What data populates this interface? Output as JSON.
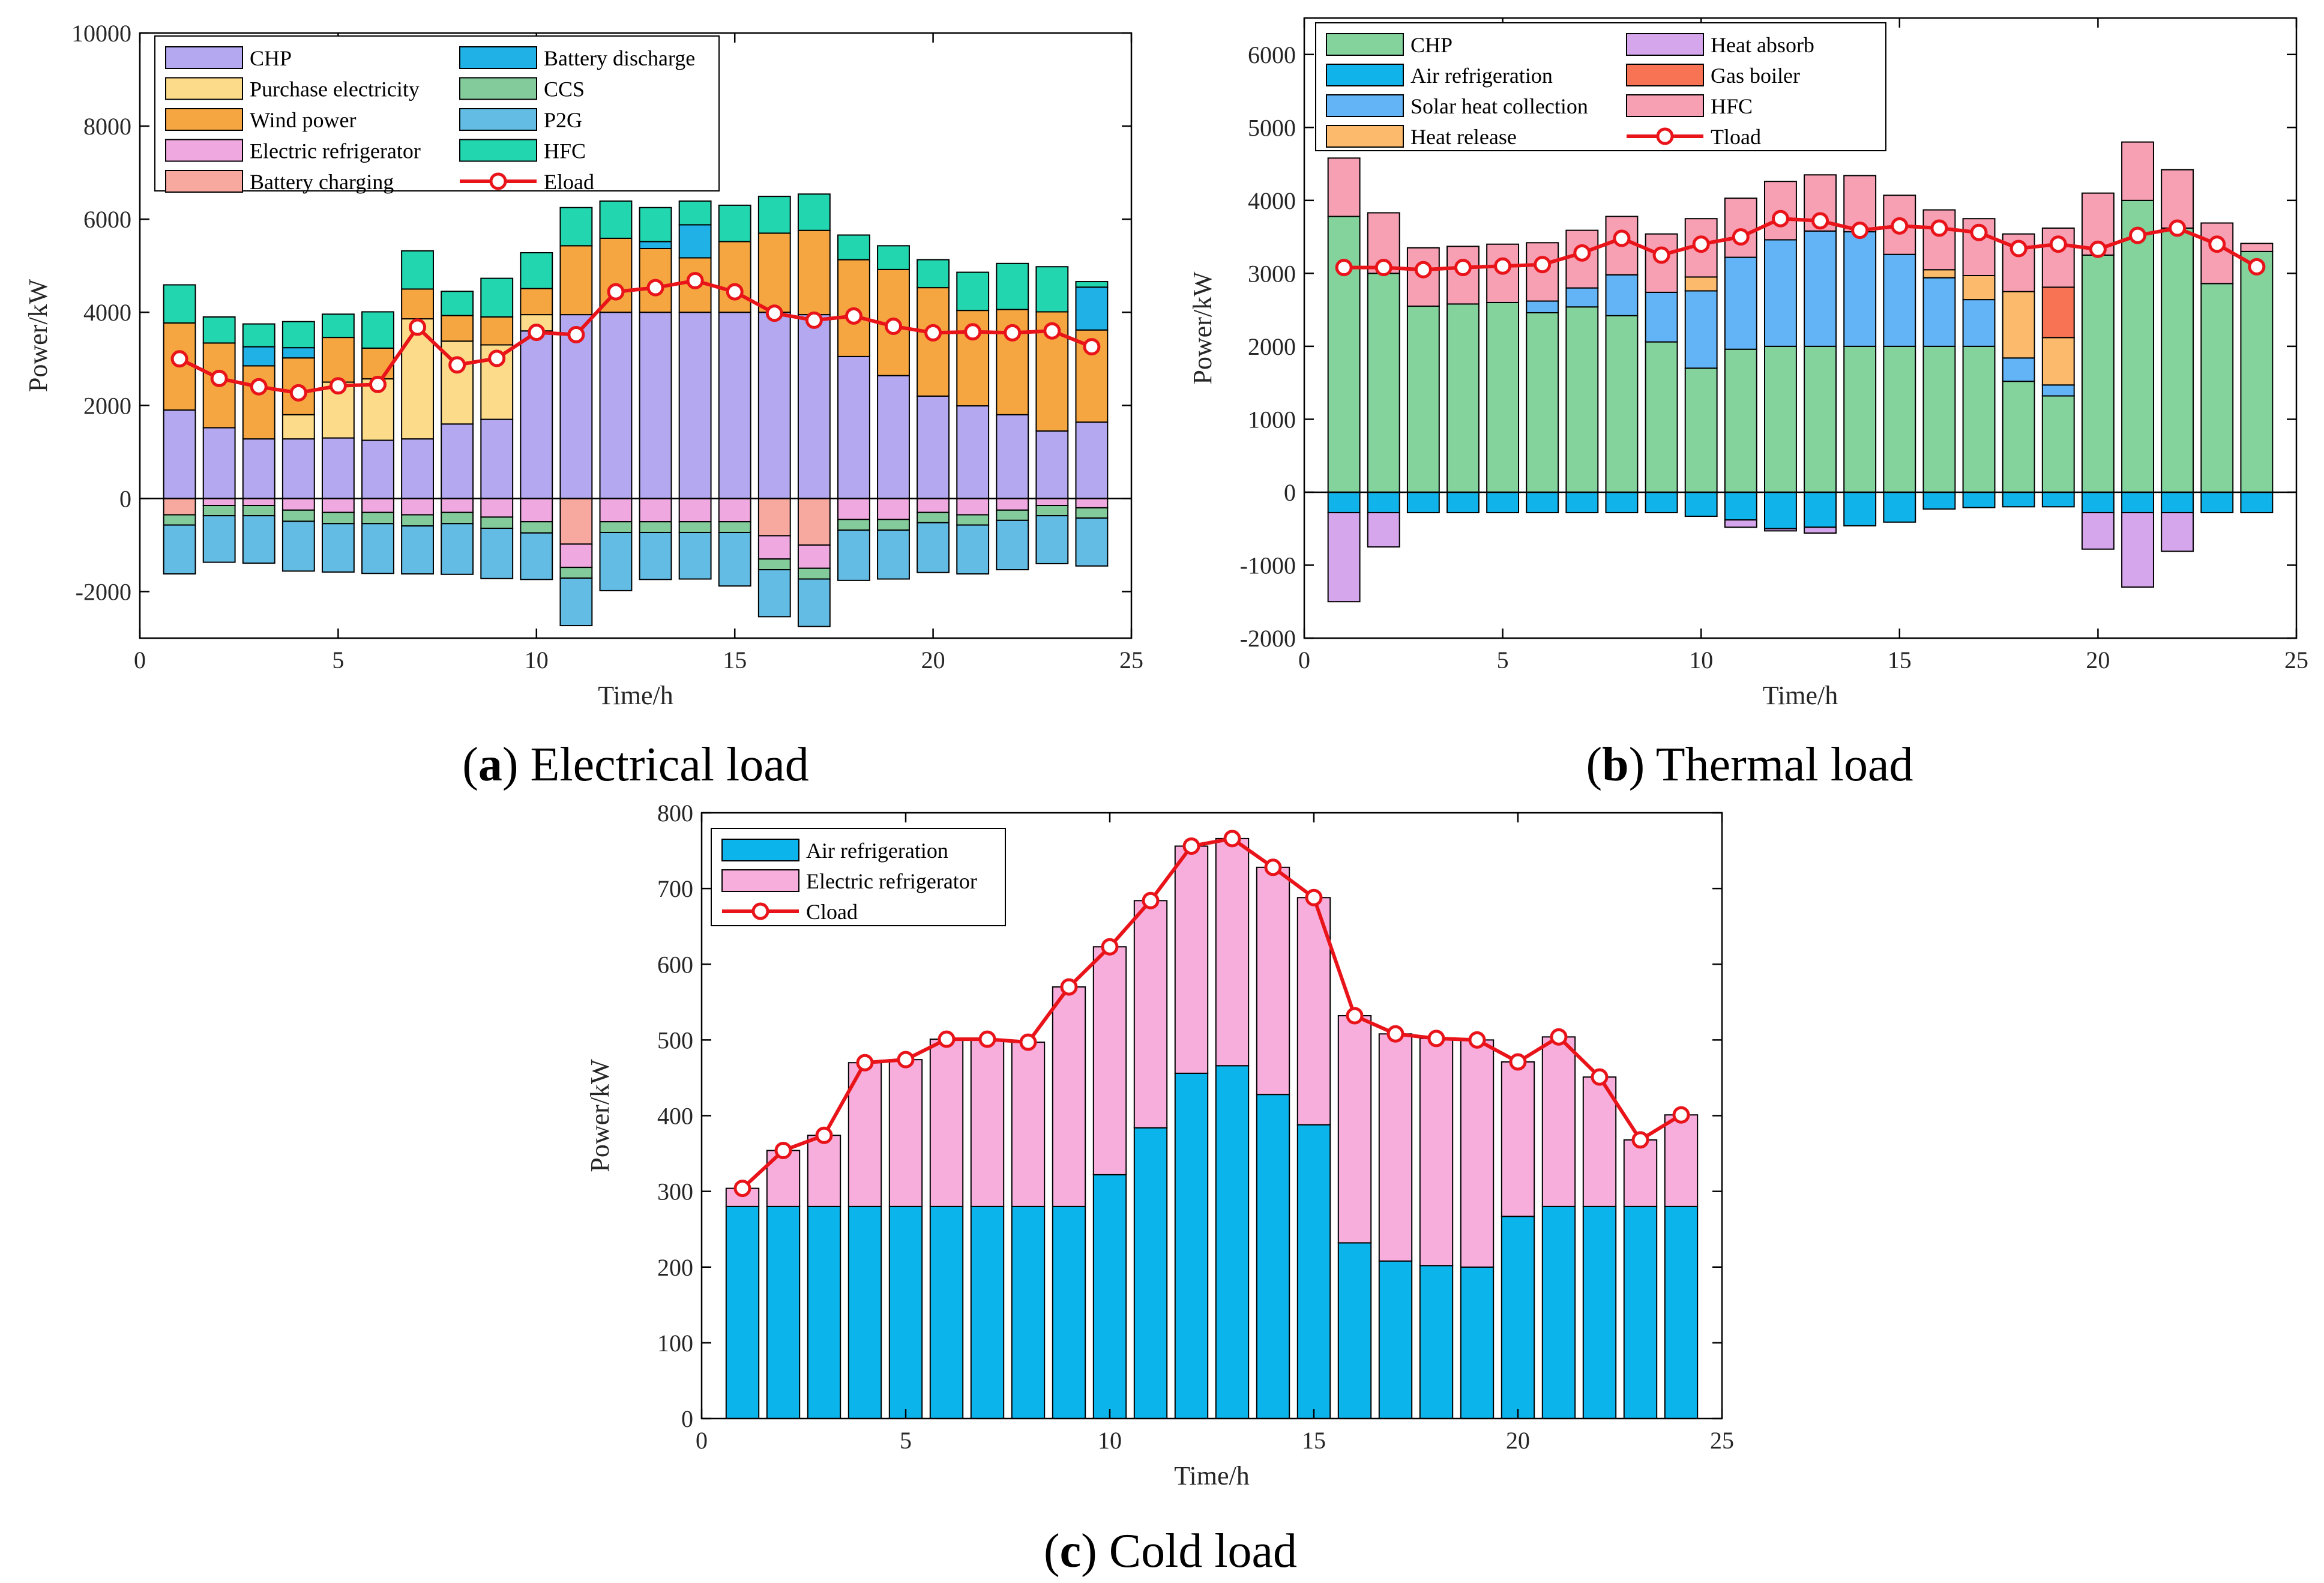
{
  "chart_data": [
    {
      "id": "electrical",
      "type": "bar",
      "caption_letter": "a",
      "caption_text": "Electrical load",
      "xlabel": "Time/h",
      "ylabel": "Power/kW",
      "xlim": [
        0,
        25
      ],
      "ylim": [
        -3000,
        10000
      ],
      "xticks": [
        0,
        5,
        10,
        15,
        20,
        25
      ],
      "yticks": [
        -2000,
        0,
        2000,
        4000,
        6000,
        8000,
        10000
      ],
      "x": [
        1,
        2,
        3,
        4,
        5,
        6,
        7,
        8,
        9,
        10,
        11,
        12,
        13,
        14,
        15,
        16,
        17,
        18,
        19,
        20,
        21,
        22,
        23,
        24
      ],
      "positive_series": [
        {
          "name": "CHP",
          "color": "#B4A9F0",
          "values": [
            1900,
            1520,
            1280,
            1280,
            1300,
            1250,
            1280,
            1600,
            1700,
            3600,
            3950,
            4000,
            4000,
            4000,
            4000,
            4000,
            3950,
            3050,
            2640,
            2200,
            1990,
            1800,
            1450,
            1640
          ]
        },
        {
          "name": "Purchase electricity",
          "color": "#FCDC8A",
          "values": [
            0,
            0,
            0,
            520,
            1200,
            1320,
            2580,
            1780,
            1600,
            350,
            0,
            0,
            0,
            0,
            0,
            0,
            0,
            0,
            0,
            0,
            0,
            0,
            0,
            0
          ]
        },
        {
          "name": "Wind power",
          "color": "#F6A640",
          "values": [
            1870,
            1820,
            1570,
            1220,
            960,
            660,
            640,
            550,
            600,
            560,
            1480,
            1590,
            1370,
            1170,
            1520,
            1700,
            1810,
            2080,
            2280,
            2330,
            2050,
            2260,
            2560,
            1980
          ]
        },
        {
          "name": "Battery discharge",
          "color": "#20B1E6",
          "values": [
            0,
            0,
            410,
            220,
            0,
            0,
            0,
            0,
            0,
            0,
            0,
            0,
            150,
            710,
            0,
            0,
            0,
            0,
            0,
            0,
            0,
            0,
            0,
            920
          ]
        },
        {
          "name": "CCS",
          "color": "#84CB9C",
          "values": [
            0,
            0,
            0,
            0,
            0,
            0,
            0,
            0,
            0,
            0,
            0,
            0,
            0,
            0,
            0,
            0,
            0,
            0,
            0,
            0,
            0,
            0,
            0,
            0
          ]
        },
        {
          "name": "P2G",
          "color": "#62BCE4",
          "values": [
            0,
            0,
            0,
            0,
            0,
            0,
            0,
            0,
            0,
            0,
            0,
            0,
            0,
            0,
            0,
            0,
            0,
            0,
            0,
            0,
            0,
            0,
            0,
            0
          ]
        },
        {
          "name": "HFC",
          "color": "#22D6B0",
          "values": [
            820,
            560,
            490,
            560,
            500,
            780,
            820,
            520,
            830,
            770,
            820,
            800,
            730,
            510,
            780,
            790,
            780,
            530,
            510,
            600,
            820,
            990,
            970,
            120
          ]
        }
      ],
      "negative_series": [
        {
          "name": "Battery charging",
          "color": "#F8A99F",
          "values": [
            -350,
            0,
            0,
            0,
            0,
            0,
            0,
            0,
            0,
            0,
            -980,
            0,
            0,
            0,
            0,
            -800,
            -1000,
            0,
            0,
            0,
            0,
            0,
            0,
            0
          ]
        },
        {
          "name": "Electric refrigerator",
          "color": "#F0A8E0",
          "values": [
            0,
            -150,
            -150,
            -250,
            -300,
            -300,
            -350,
            -300,
            -400,
            -500,
            -500,
            -500,
            -500,
            -500,
            -500,
            -500,
            -500,
            -450,
            -450,
            -300,
            -350,
            -250,
            -150,
            -200
          ]
        },
        {
          "name": "CCS",
          "color": "#84CB9C",
          "values": [
            -220,
            -220,
            -220,
            -240,
            -240,
            -240,
            -240,
            -240,
            -240,
            -240,
            -230,
            -230,
            -230,
            -230,
            -230,
            -230,
            -230,
            -230,
            -230,
            -220,
            -220,
            -220,
            -220,
            -220
          ]
        },
        {
          "name": "P2G",
          "color": "#62BCE4",
          "values": [
            -1050,
            -1000,
            -1020,
            -1070,
            -1040,
            -1070,
            -1030,
            -1090,
            -1080,
            -1000,
            -1020,
            -1250,
            -1010,
            -1000,
            -1150,
            -1010,
            -1020,
            -1080,
            -1050,
            -1070,
            -1050,
            -1060,
            -1030,
            -1030
          ]
        }
      ],
      "line": {
        "name": "Eload",
        "color": "#E8141A",
        "values": [
          3000,
          2580,
          2400,
          2270,
          2420,
          2450,
          3680,
          2870,
          3010,
          3570,
          3520,
          4440,
          4530,
          4680,
          4440,
          3980,
          3830,
          3920,
          3700,
          3560,
          3580,
          3560,
          3600,
          3260
        ]
      },
      "legend": [
        {
          "name": "CHP",
          "kind": "patch",
          "color": "#B4A9F0"
        },
        {
          "name": "Purchase electricity",
          "kind": "patch",
          "color": "#FCDC8A"
        },
        {
          "name": "Wind power",
          "kind": "patch",
          "color": "#F6A640"
        },
        {
          "name": "Electric refrigerator",
          "kind": "patch",
          "color": "#F0A8E0"
        },
        {
          "name": "Battery charging",
          "kind": "patch",
          "color": "#F8A99F"
        },
        {
          "name": "Battery discharge",
          "kind": "patch",
          "color": "#20B1E6"
        },
        {
          "name": "CCS",
          "kind": "patch",
          "color": "#84CB9C"
        },
        {
          "name": "P2G",
          "kind": "patch",
          "color": "#62BCE4"
        },
        {
          "name": "HFC",
          "kind": "patch",
          "color": "#22D6B0"
        },
        {
          "name": "Eload",
          "kind": "line",
          "color": "#E8141A"
        }
      ],
      "legend_columns": 2,
      "legend_position": "top-left"
    },
    {
      "id": "thermal",
      "type": "bar",
      "caption_letter": "b",
      "caption_text": "Thermal load",
      "xlabel": "Time/h",
      "ylabel": "Power/kW",
      "xlim": [
        0,
        25
      ],
      "ylim": [
        -2000,
        6500
      ],
      "xticks": [
        0,
        5,
        10,
        15,
        20,
        25
      ],
      "yticks": [
        -2000,
        -1000,
        0,
        1000,
        2000,
        3000,
        4000,
        5000,
        6000
      ],
      "x": [
        1,
        2,
        3,
        4,
        5,
        6,
        7,
        8,
        9,
        10,
        11,
        12,
        13,
        14,
        15,
        16,
        17,
        18,
        19,
        20,
        21,
        22,
        23,
        24
      ],
      "positive_series": [
        {
          "name": "CHP",
          "color": "#84D39C",
          "values": [
            3780,
            3000,
            2550,
            2580,
            2600,
            2460,
            2540,
            2420,
            2060,
            1700,
            1960,
            2000,
            2000,
            2000,
            2000,
            2000,
            2000,
            1520,
            1320,
            3250,
            4000,
            3620,
            2860,
            3300
          ]
        },
        {
          "name": "Solar heat collection",
          "color": "#62B4F6",
          "values": [
            0,
            0,
            0,
            0,
            0,
            160,
            260,
            560,
            680,
            1060,
            1260,
            1460,
            1580,
            1570,
            1260,
            940,
            640,
            320,
            150,
            0,
            0,
            0,
            0,
            0
          ]
        },
        {
          "name": "Heat release",
          "color": "#FCBB6C",
          "values": [
            0,
            0,
            0,
            0,
            0,
            0,
            0,
            0,
            0,
            190,
            0,
            0,
            0,
            0,
            0,
            110,
            330,
            910,
            650,
            0,
            0,
            0,
            0,
            0
          ]
        },
        {
          "name": "Gas boiler",
          "color": "#F87254",
          "values": [
            0,
            0,
            0,
            0,
            0,
            0,
            0,
            0,
            0,
            0,
            0,
            0,
            0,
            0,
            0,
            0,
            0,
            0,
            690,
            0,
            0,
            0,
            0,
            0
          ]
        },
        {
          "name": "HFC",
          "color": "#F7A0B4",
          "values": [
            800,
            830,
            800,
            790,
            800,
            800,
            790,
            800,
            800,
            800,
            810,
            800,
            770,
            770,
            810,
            820,
            780,
            790,
            810,
            850,
            800,
            800,
            830,
            110
          ]
        }
      ],
      "negative_series": [
        {
          "name": "Air refrigeration",
          "color": "#10B3EA",
          "values": [
            -280,
            -280,
            -280,
            -280,
            -280,
            -280,
            -280,
            -280,
            -280,
            -330,
            -380,
            -500,
            -480,
            -460,
            -410,
            -230,
            -210,
            -200,
            -200,
            -280,
            -280,
            -280,
            -280,
            -280
          ]
        },
        {
          "name": "Heat absorb",
          "color": "#D5A6EC",
          "values": [
            -1220,
            -470,
            0,
            0,
            0,
            0,
            0,
            0,
            0,
            0,
            -100,
            -30,
            -80,
            0,
            0,
            0,
            0,
            0,
            0,
            -500,
            -1020,
            -530,
            0,
            0
          ]
        }
      ],
      "line": {
        "name": "Tload",
        "color": "#E8141A",
        "values": [
          3080,
          3080,
          3050,
          3080,
          3100,
          3120,
          3280,
          3480,
          3250,
          3400,
          3500,
          3750,
          3720,
          3590,
          3650,
          3620,
          3560,
          3340,
          3400,
          3330,
          3520,
          3620,
          3400,
          3090
        ]
      },
      "legend": [
        {
          "name": "CHP",
          "kind": "patch",
          "color": "#84D39C"
        },
        {
          "name": "Air refrigeration",
          "kind": "patch",
          "color": "#10B3EA"
        },
        {
          "name": "Solar heat collection",
          "kind": "patch",
          "color": "#62B4F6"
        },
        {
          "name": "Heat release",
          "kind": "patch",
          "color": "#FCBB6C"
        },
        {
          "name": "Heat absorb",
          "kind": "patch",
          "color": "#D5A6EC"
        },
        {
          "name": "Gas boiler",
          "kind": "patch",
          "color": "#F87254"
        },
        {
          "name": "HFC",
          "kind": "patch",
          "color": "#F7A0B4"
        },
        {
          "name": "Tload",
          "kind": "line",
          "color": "#E8141A"
        }
      ],
      "legend_columns": 2,
      "legend_position": "top-left"
    },
    {
      "id": "cold",
      "type": "bar",
      "caption_letter": "c",
      "caption_text": "Cold load",
      "xlabel": "Time/h",
      "ylabel": "Power/kW",
      "xlim": [
        0,
        25
      ],
      "ylim": [
        0,
        800
      ],
      "xticks": [
        0,
        5,
        10,
        15,
        20,
        25
      ],
      "yticks": [
        0,
        100,
        200,
        300,
        400,
        500,
        600,
        700,
        800
      ],
      "x": [
        1,
        2,
        3,
        4,
        5,
        6,
        7,
        8,
        9,
        10,
        11,
        12,
        13,
        14,
        15,
        16,
        17,
        18,
        19,
        20,
        21,
        22,
        23,
        24
      ],
      "positive_series": [
        {
          "name": "Air refrigeration",
          "color": "#0CB4EC",
          "values": [
            280,
            280,
            280,
            280,
            280,
            280,
            280,
            280,
            280,
            322,
            384,
            456,
            466,
            428,
            388,
            232,
            208,
            202,
            200,
            267,
            280,
            280,
            280,
            280
          ]
        },
        {
          "name": "Electric refrigerator",
          "color": "#F8AEDC",
          "values": [
            24,
            74,
            94,
            190,
            194,
            221,
            221,
            217,
            290,
            301,
            300,
            300,
            300,
            300,
            300,
            300,
            300,
            300,
            300,
            204,
            224,
            171,
            88,
            121
          ]
        }
      ],
      "negative_series": [],
      "line": {
        "name": "Cload",
        "color": "#E8141A",
        "values": [
          304,
          354,
          374,
          470,
          474,
          501,
          501,
          497,
          570,
          623,
          684,
          756,
          766,
          728,
          688,
          532,
          508,
          502,
          500,
          471,
          504,
          451,
          368,
          401
        ]
      },
      "legend": [
        {
          "name": "Air refrigeration",
          "kind": "patch",
          "color": "#0CB4EC"
        },
        {
          "name": "Electric refrigerator",
          "kind": "patch",
          "color": "#F8AEDC"
        },
        {
          "name": "Cload",
          "kind": "line",
          "color": "#E8141A"
        }
      ],
      "legend_columns": 1,
      "legend_position": "top-left"
    }
  ]
}
